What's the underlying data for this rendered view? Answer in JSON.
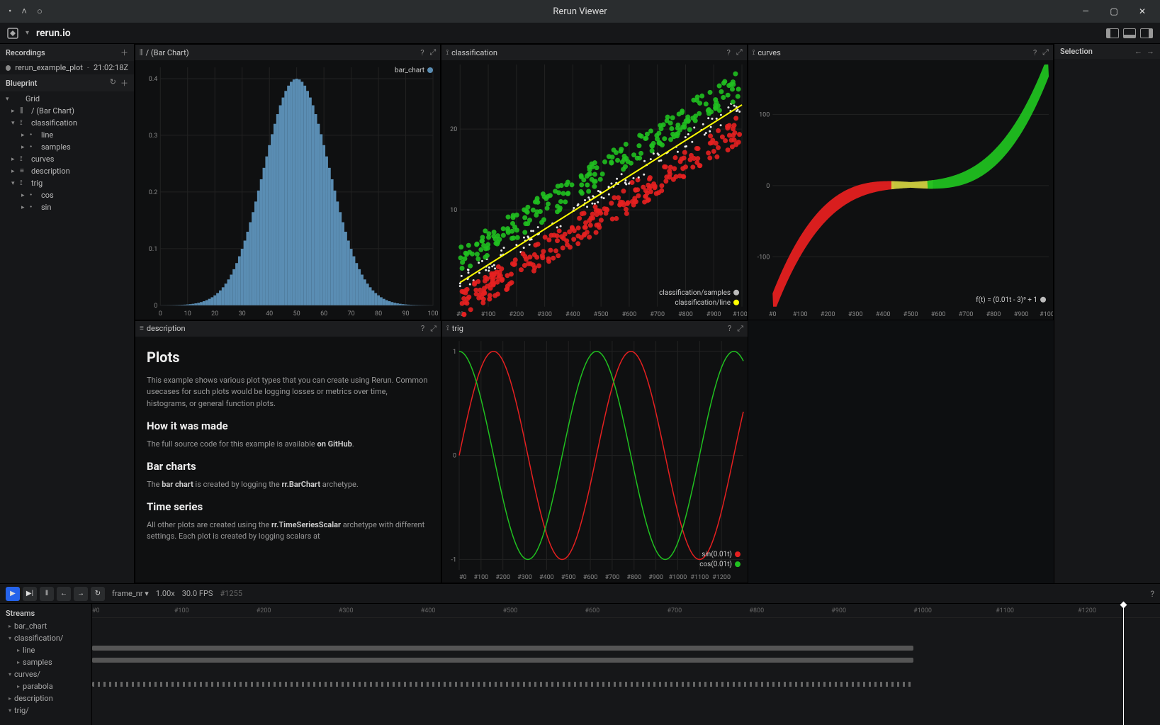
{
  "window": {
    "title": "Rerun Viewer"
  },
  "app": {
    "title": "rerun.io"
  },
  "sidebar": {
    "recordings_header": "Recordings",
    "recording": {
      "name": "rerun_example_plot",
      "time": "21:02:18Z"
    },
    "blueprint_header": "Blueprint",
    "tree": [
      {
        "label": "Grid",
        "depth": 0,
        "expanded": true,
        "icon": ""
      },
      {
        "label": "/ (Bar Chart)",
        "depth": 1,
        "expanded": false,
        "icon": "⫼"
      },
      {
        "label": "classification",
        "depth": 1,
        "expanded": true,
        "icon": "⟟"
      },
      {
        "label": "line",
        "depth": 2,
        "expanded": false,
        "icon": "•"
      },
      {
        "label": "samples",
        "depth": 2,
        "expanded": false,
        "icon": "•"
      },
      {
        "label": "curves",
        "depth": 1,
        "expanded": false,
        "icon": "⟟"
      },
      {
        "label": "description",
        "depth": 1,
        "expanded": false,
        "icon": "≡"
      },
      {
        "label": "trig",
        "depth": 1,
        "expanded": true,
        "icon": "⟟"
      },
      {
        "label": "cos",
        "depth": 2,
        "expanded": false,
        "icon": "•"
      },
      {
        "label": "sin",
        "depth": 2,
        "expanded": false,
        "icon": "•"
      }
    ]
  },
  "selection": {
    "header": "Selection"
  },
  "panels": {
    "bar_chart": {
      "title": "/ (Bar Chart)",
      "legend": "bar_chart",
      "legend_color": "#5a8db3",
      "xticks": [
        0,
        10,
        20,
        30,
        40,
        50,
        60,
        70,
        80,
        90,
        100
      ],
      "yticks": [
        0,
        0.1,
        0.2,
        0.3,
        0.4
      ],
      "ylim": [
        0,
        0.42
      ],
      "fill_color": "#5a8db3",
      "background": "#0f1011",
      "grid_color": "#222222",
      "mu": 50,
      "sigma": 12,
      "amp": 0.4
    },
    "classification": {
      "title": "classification",
      "xticks": [
        "#0",
        "#100",
        "#200",
        "#300",
        "#400",
        "#500",
        "#600",
        "#700",
        "#800",
        "#900",
        "#1000"
      ],
      "yticks": [
        10,
        20
      ],
      "xlim": [
        0,
        1000
      ],
      "ylim": [
        -2,
        28
      ],
      "line_color": "#ffff00",
      "sample_red": "#e52020",
      "sample_green": "#20c020",
      "sample_white": "#ffffff",
      "legend": [
        {
          "label": "classification/samples",
          "color": "#bbbbbb"
        },
        {
          "label": "classification/line",
          "color": "#ffff00"
        }
      ],
      "slope": 0.022,
      "intercept": 1
    },
    "curves": {
      "title": "curves",
      "xticks": [
        "#0",
        "#100",
        "#200",
        "#300",
        "#400",
        "#500",
        "#600",
        "#700",
        "#800",
        "#900",
        "#1000"
      ],
      "yticks": [
        -100,
        0,
        100
      ],
      "xlim": [
        0,
        1000
      ],
      "ylim": [
        -170,
        170
      ],
      "red": "#e52020",
      "green": "#20c020",
      "yellow": "#d0d040",
      "formula": "f(t) = (0.01t - 3)³ + 1",
      "formula_color": "#bbbbbb"
    },
    "description": {
      "title": "description",
      "h1": "Plots",
      "p1": "This example shows various plot types that you can create using Rerun. Common usecases for such plots would be logging losses or metrics over time, histograms, or general function plots.",
      "h2a": "How it was made",
      "p2": "The full source code for this example is available ",
      "p2_link": "on GitHub",
      "h2b": "Bar charts",
      "p3a": "The ",
      "p3b": "bar chart",
      "p3c": " is created by logging the ",
      "p3d": "rr.BarChart",
      "p3e": " archetype.",
      "h2c": "Time series",
      "p4a": "All other plots are created using the ",
      "p4b": "rr.TimeSeriesScalar",
      "p4c": " archetype with different settings. Each plot is created by logging scalars at"
    },
    "trig": {
      "title": "trig",
      "xticks": [
        "#0",
        "#100#",
        "200#",
        "300#",
        "400#",
        "500#",
        "600#",
        "700#",
        "800#",
        "900#",
        "1000#",
        "110#",
        "120"
      ],
      "yticks": [
        -1,
        0,
        1
      ],
      "xlim": [
        0,
        1300
      ],
      "ylim": [
        -1.1,
        1.1
      ],
      "sin_color": "#e52020",
      "cos_color": "#20c020",
      "legend": [
        {
          "label": "sin(0.01t)",
          "color": "#e52020"
        },
        {
          "label": "cos(0.01t)",
          "color": "#20c020"
        }
      ]
    }
  },
  "timeline": {
    "controls": {
      "frame_nr_label": "frame_nr ▾",
      "speed": "1.00x",
      "fps": "30.0 FPS",
      "cursor": "#1255"
    },
    "streams_header": "Streams",
    "ruler_ticks": [
      "#0",
      "#100",
      "#200",
      "#300",
      "#400",
      "#500",
      "#600",
      "#700",
      "#800",
      "#900",
      "#1000",
      "#1100",
      "#1200"
    ],
    "ruler_max": 1300,
    "cursor_pos": 1255,
    "streams": [
      {
        "label": "bar_chart",
        "depth": 0,
        "caret": "▸",
        "bar": null
      },
      {
        "label": "classification/",
        "depth": 0,
        "caret": "▾",
        "bar": null
      },
      {
        "label": "line",
        "depth": 1,
        "caret": "▸",
        "bar": [
          0,
          1000
        ]
      },
      {
        "label": "samples",
        "depth": 1,
        "caret": "▸",
        "bar": [
          0,
          1000
        ]
      },
      {
        "label": "curves/",
        "depth": 0,
        "caret": "▾",
        "bar": null
      },
      {
        "label": "parabola",
        "depth": 1,
        "caret": "▸",
        "bar": [
          0,
          1000
        ],
        "dotted": true
      },
      {
        "label": "description",
        "depth": 0,
        "caret": "▸",
        "bar": null
      },
      {
        "label": "trig/",
        "depth": 0,
        "caret": "▾",
        "bar": null
      }
    ]
  }
}
